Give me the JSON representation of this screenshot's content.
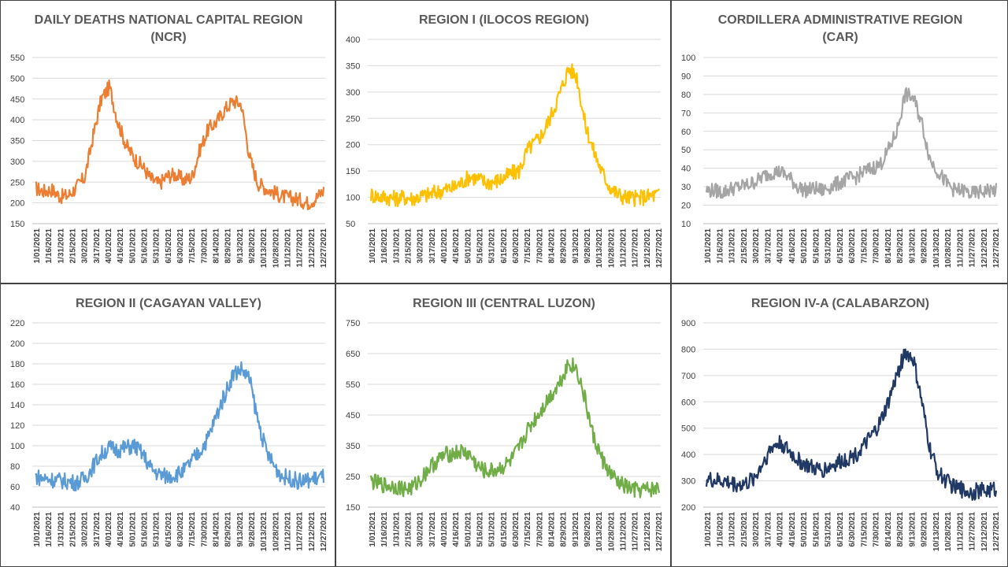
{
  "chart_data": [
    {
      "type": "line",
      "title": "DAILY DEATHS NATIONAL CAPITAL REGION (NCR)",
      "title_lines": [
        "DAILY DEATHS NATIONAL CAPITAL REGION",
        "(NCR)"
      ],
      "color": "#ED7D31",
      "ylim": [
        150,
        550
      ],
      "yticks": [
        150,
        200,
        250,
        300,
        350,
        400,
        450,
        500,
        550
      ],
      "x_tick_labels": [
        "1/01/2021",
        "1/16/2021",
        "1/31/2021",
        "2/15/2021",
        "3/02/2021",
        "3/17/2021",
        "4/01/2021",
        "4/16/2021",
        "5/01/2021",
        "5/16/2021",
        "5/31/2021",
        "6/15/2021",
        "6/30/2021",
        "7/15/2021",
        "7/30/2021",
        "8/14/2021",
        "8/29/2021",
        "9/13/2021",
        "9/28/2021",
        "10/13/2021",
        "10/28/2021",
        "11/12/2021",
        "11/27/2021",
        "12/12/2021",
        "12/27/2021"
      ],
      "grid": true,
      "series": [
        {
          "values": [
            235,
            228,
            232,
            215,
            218,
            238,
            262,
            360,
            450,
            480,
            395,
            340,
            308,
            288,
            258,
            245,
            265,
            268,
            255,
            262,
            330,
            378,
            395,
            425,
            445,
            438,
            310,
            248,
            235,
            225,
            215,
            212,
            208,
            200,
            210,
            230
          ]
        }
      ]
    },
    {
      "type": "line",
      "title": "REGION I (ILOCOS REGION)",
      "title_lines": [
        "REGION I (ILOCOS REGION)"
      ],
      "color": "#FFC000",
      "ylim": [
        50,
        400
      ],
      "yticks": [
        50,
        100,
        150,
        200,
        250,
        300,
        350,
        400
      ],
      "x_tick_labels": [
        "1/01/2021",
        "1/16/2021",
        "1/31/2021",
        "2/15/2021",
        "3/02/2021",
        "3/17/2021",
        "4/01/2021",
        "4/16/2021",
        "5/01/2021",
        "5/16/2021",
        "5/31/2021",
        "6/15/2021",
        "6/30/2021",
        "7/15/2021",
        "7/30/2021",
        "8/14/2021",
        "8/29/2021",
        "9/13/2021",
        "9/28/2021",
        "10/13/2021",
        "10/28/2021",
        "11/12/2021",
        "11/27/2021",
        "12/12/2021",
        "12/27/2021"
      ],
      "grid": true,
      "series": [
        {
          "values": [
            105,
            102,
            100,
            98,
            100,
            98,
            102,
            105,
            110,
            115,
            118,
            128,
            140,
            135,
            128,
            130,
            135,
            145,
            150,
            190,
            205,
            225,
            260,
            300,
            345,
            330,
            240,
            190,
            150,
            120,
            105,
            100,
            98,
            100,
            103,
            105
          ]
        }
      ]
    },
    {
      "type": "line",
      "title": "CORDILLERA ADMINISTRATIVE REGION (CAR)",
      "title_lines": [
        "CORDILLERA ADMINISTRATIVE REGION",
        "(CAR)"
      ],
      "color": "#A5A5A5",
      "ylim": [
        10,
        100
      ],
      "yticks": [
        10,
        20,
        30,
        40,
        50,
        60,
        70,
        80,
        90,
        100
      ],
      "x_tick_labels": [
        "1/01/2021",
        "1/16/2021",
        "1/31/2021",
        "2/15/2021",
        "3/02/2021",
        "3/17/2021",
        "4/01/2021",
        "4/16/2021",
        "5/01/2021",
        "5/16/2021",
        "5/31/2021",
        "6/15/2021",
        "6/30/2021",
        "7/15/2021",
        "7/30/2021",
        "8/14/2021",
        "8/29/2021",
        "9/13/2021",
        "9/28/2021",
        "10/13/2021",
        "10/28/2021",
        "11/12/2021",
        "11/27/2021",
        "12/12/2021",
        "12/27/2021"
      ],
      "grid": true,
      "series": [
        {
          "values": [
            28,
            28,
            27,
            29,
            30,
            31,
            33,
            36,
            38,
            38,
            35,
            30,
            28,
            29,
            28,
            30,
            32,
            34,
            35,
            38,
            40,
            42,
            50,
            60,
            80,
            78,
            65,
            45,
            38,
            32,
            28,
            28,
            26,
            27,
            28,
            28
          ]
        }
      ]
    },
    {
      "type": "line",
      "title": "REGION II (CAGAYAN VALLEY)",
      "title_lines": [
        "REGION II (CAGAYAN VALLEY)"
      ],
      "color": "#5B9BD5",
      "ylim": [
        40,
        220
      ],
      "yticks": [
        40,
        60,
        80,
        100,
        120,
        140,
        160,
        180,
        200,
        220
      ],
      "x_tick_labels": [
        "1/01/2021",
        "1/16/2021",
        "1/31/2021",
        "2/15/2021",
        "3/02/2021",
        "3/17/2021",
        "4/01/2021",
        "4/16/2021",
        "5/01/2021",
        "5/16/2021",
        "5/31/2021",
        "6/15/2021",
        "6/30/2021",
        "7/15/2021",
        "7/30/2021",
        "8/14/2021",
        "8/29/2021",
        "9/13/2021",
        "9/28/2021",
        "10/13/2021",
        "10/28/2021",
        "11/12/2021",
        "11/27/2021",
        "12/12/2021",
        "12/27/2021"
      ],
      "grid": true,
      "series": [
        {
          "values": [
            70,
            68,
            67,
            66,
            65,
            64,
            68,
            80,
            92,
            98,
            96,
            98,
            100,
            92,
            78,
            72,
            70,
            72,
            75,
            85,
            95,
            108,
            130,
            150,
            170,
            175,
            165,
            125,
            95,
            80,
            70,
            68,
            65,
            66,
            68,
            70
          ]
        }
      ]
    },
    {
      "type": "line",
      "title": "REGION III (CENTRAL LUZON)",
      "title_lines": [
        "REGION III (CENTRAL LUZON)"
      ],
      "color": "#70AD47",
      "ylim": [
        150,
        750
      ],
      "yticks": [
        150,
        250,
        350,
        450,
        550,
        650,
        750
      ],
      "x_tick_labels": [
        "1/01/2021",
        "1/16/2021",
        "1/31/2021",
        "2/15/2021",
        "3/02/2021",
        "3/17/2021",
        "4/01/2021",
        "4/16/2021",
        "5/01/2021",
        "5/16/2021",
        "5/31/2021",
        "6/15/2021",
        "6/30/2021",
        "7/15/2021",
        "7/30/2021",
        "8/14/2021",
        "8/29/2021",
        "9/13/2021",
        "9/28/2021",
        "10/13/2021",
        "10/28/2021",
        "11/12/2021",
        "11/27/2021",
        "12/12/2021",
        "12/27/2021"
      ],
      "grid": true,
      "series": [
        {
          "values": [
            235,
            225,
            220,
            218,
            210,
            212,
            240,
            275,
            300,
            320,
            325,
            330,
            320,
            280,
            265,
            270,
            280,
            300,
            340,
            400,
            440,
            480,
            520,
            560,
            620,
            600,
            500,
            380,
            310,
            260,
            230,
            215,
            205,
            205,
            208,
            210
          ]
        }
      ]
    },
    {
      "type": "line",
      "title": "REGION IV-A (CALABARZON)",
      "title_lines": [
        "REGION IV-A (CALABARZON)"
      ],
      "color": "#203864",
      "ylim": [
        200,
        900
      ],
      "yticks": [
        200,
        300,
        400,
        500,
        600,
        700,
        800,
        900
      ],
      "x_tick_labels": [
        "1/01/2021",
        "1/16/2021",
        "1/31/2021",
        "2/15/2021",
        "3/02/2021",
        "3/17/2021",
        "4/01/2021",
        "4/16/2021",
        "5/01/2021",
        "5/16/2021",
        "5/31/2021",
        "6/15/2021",
        "6/30/2021",
        "7/15/2021",
        "7/30/2021",
        "8/14/2021",
        "8/29/2021",
        "9/13/2021",
        "9/28/2021",
        "10/13/2021",
        "10/28/2021",
        "11/12/2021",
        "11/27/2021",
        "12/12/2021",
        "12/27/2021"
      ],
      "grid": true,
      "series": [
        {
          "values": [
            305,
            300,
            298,
            290,
            285,
            290,
            320,
            380,
            430,
            445,
            410,
            380,
            360,
            345,
            340,
            355,
            370,
            385,
            400,
            430,
            470,
            520,
            600,
            700,
            790,
            760,
            600,
            420,
            330,
            300,
            275,
            265,
            258,
            262,
            265,
            270
          ]
        }
      ]
    }
  ]
}
